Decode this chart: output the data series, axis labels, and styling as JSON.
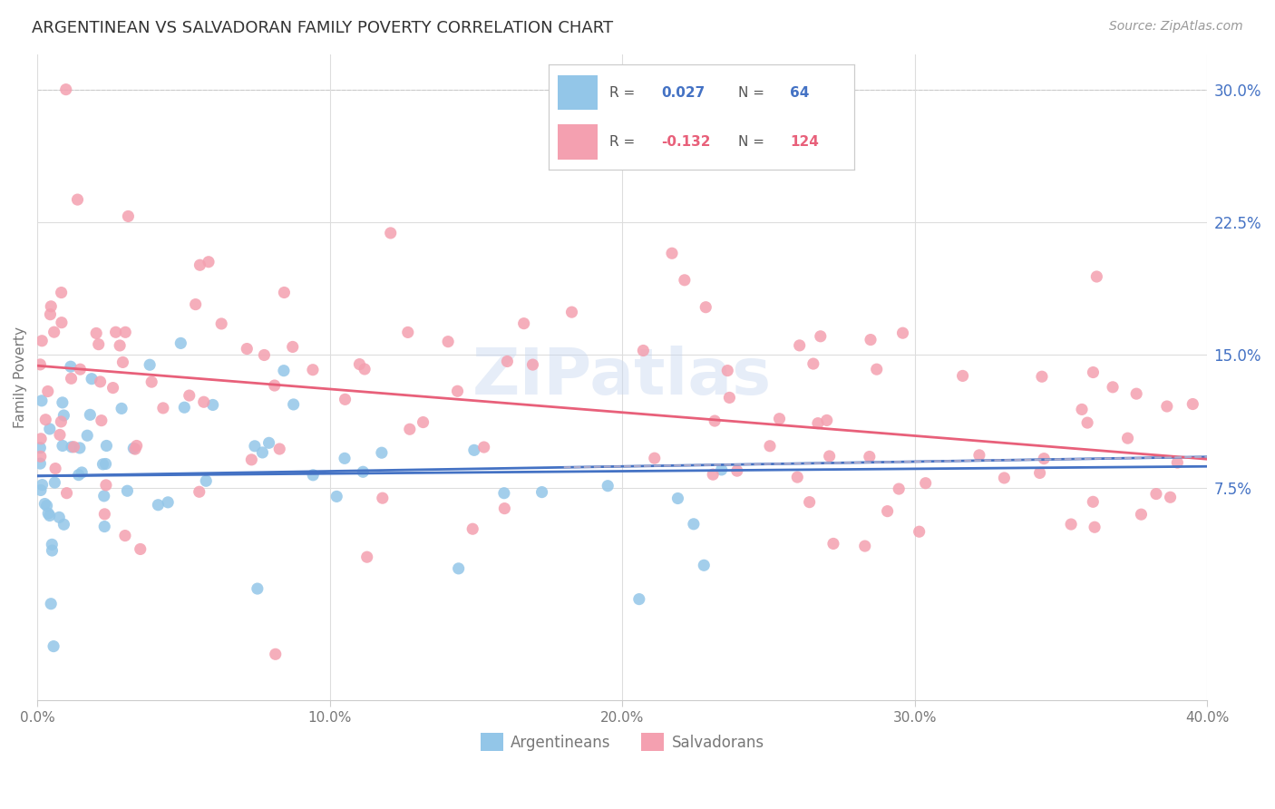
{
  "title": "ARGENTINEAN VS SALVADORAN FAMILY POVERTY CORRELATION CHART",
  "source": "Source: ZipAtlas.com",
  "ylabel": "Family Poverty",
  "xlim": [
    0.0,
    0.4
  ],
  "ylim": [
    -0.045,
    0.32
  ],
  "argentinean_color": "#93C6E8",
  "salvadoran_color": "#F4A0B0",
  "argentina_R": 0.027,
  "argentina_N": 64,
  "salvadoran_R": -0.132,
  "salvadoran_N": 124,
  "trend_argentina_color": "#4472C4",
  "trend_salvadoran_color": "#E8607A",
  "trend_dashed_color": "#AAAACC",
  "watermark": "ZIPatlas",
  "background_color": "#FFFFFF",
  "grid_color": "#DDDDDD",
  "legend_label_argentina": "Argentineans",
  "legend_label_salvadoran": "Salvadorans"
}
